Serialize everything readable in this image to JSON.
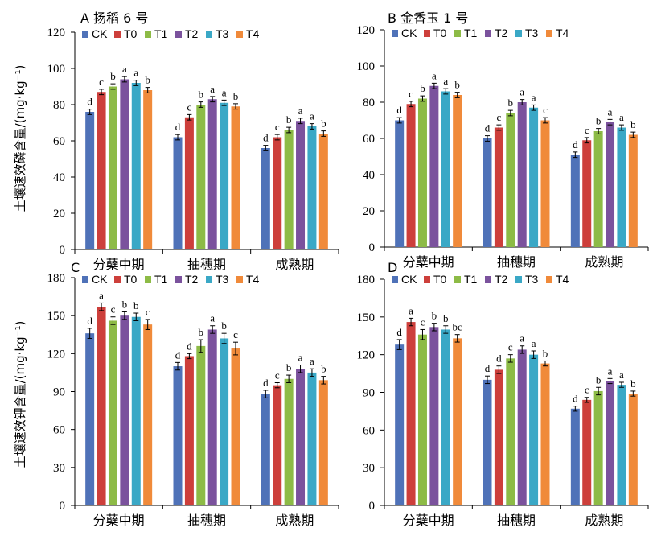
{
  "colors": {
    "CK": "#4f72b8",
    "T0": "#cd3f3b",
    "T1": "#8dbb46",
    "T2": "#7b529d",
    "T3": "#3aa8c6",
    "T4": "#f08a3a"
  },
  "ylabels": {
    "top": "土壤速效磷含量/(mg·kg⁻¹)",
    "bottom": "土壤速效钾含量/(mg·kg⁻¹)"
  },
  "chart_data": [
    {
      "id": "A",
      "type": "bar",
      "title": "A   扬稻 6 号",
      "ylim": [
        0,
        120
      ],
      "yticks": [
        0,
        20,
        40,
        60,
        80,
        100,
        120
      ],
      "categories": [
        "分蘖中期",
        "抽穗期",
        "成熟期"
      ],
      "series": [
        {
          "name": "CK",
          "values": [
            76,
            62,
            56
          ],
          "errors": [
            1.5,
            1.5,
            1.5
          ],
          "sig": [
            "d",
            "d",
            "d"
          ]
        },
        {
          "name": "T0",
          "values": [
            87,
            73,
            62
          ],
          "errors": [
            1.5,
            1.5,
            1.5
          ],
          "sig": [
            "c",
            "c",
            "c"
          ]
        },
        {
          "name": "T1",
          "values": [
            90,
            80,
            66
          ],
          "errors": [
            1.5,
            1.5,
            1.5
          ],
          "sig": [
            "b",
            "b",
            "b"
          ]
        },
        {
          "name": "T2",
          "values": [
            94,
            83,
            71
          ],
          "errors": [
            1.5,
            1.5,
            1.5
          ],
          "sig": [
            "a",
            "a",
            "a"
          ]
        },
        {
          "name": "T3",
          "values": [
            92,
            81,
            68
          ],
          "errors": [
            1.5,
            1.5,
            1.5
          ],
          "sig": [
            "a",
            "a",
            "a"
          ]
        },
        {
          "name": "T4",
          "values": [
            88,
            79,
            64
          ],
          "errors": [
            1.5,
            1.5,
            1.5
          ],
          "sig": [
            "b",
            "b",
            "b"
          ]
        }
      ]
    },
    {
      "id": "B",
      "type": "bar",
      "title": "B   金香玉 1 号",
      "ylim": [
        0,
        120
      ],
      "yticks": [
        0,
        20,
        40,
        60,
        80,
        100,
        120
      ],
      "categories": [
        "分蘖中期",
        "抽穗期",
        "成熟期"
      ],
      "series": [
        {
          "name": "CK",
          "values": [
            70,
            60,
            51
          ],
          "errors": [
            1.5,
            1.5,
            1.5
          ],
          "sig": [
            "d",
            "d",
            "d"
          ]
        },
        {
          "name": "T0",
          "values": [
            79,
            66,
            59
          ],
          "errors": [
            1.5,
            1.5,
            1.5
          ],
          "sig": [
            "c",
            "c",
            "c"
          ]
        },
        {
          "name": "T1",
          "values": [
            82,
            74,
            64
          ],
          "errors": [
            1.5,
            1.5,
            1.5
          ],
          "sig": [
            "b",
            "b",
            "b"
          ]
        },
        {
          "name": "T2",
          "values": [
            89,
            80,
            69
          ],
          "errors": [
            1.5,
            1.5,
            1.5
          ],
          "sig": [
            "a",
            "a",
            "a"
          ]
        },
        {
          "name": "T3",
          "values": [
            86,
            77,
            66
          ],
          "errors": [
            1.5,
            1.5,
            1.5
          ],
          "sig": [
            "a",
            "a",
            "a"
          ]
        },
        {
          "name": "T4",
          "values": [
            84,
            70,
            62
          ],
          "errors": [
            1.5,
            1.5,
            1.5
          ],
          "sig": [
            "b",
            "c",
            "b"
          ]
        }
      ]
    },
    {
      "id": "C",
      "type": "bar",
      "title": "C",
      "ylim": [
        0,
        180
      ],
      "yticks": [
        0,
        30,
        60,
        90,
        120,
        150,
        180
      ],
      "categories": [
        "分蘖中期",
        "抽穗期",
        "成熟期"
      ],
      "series": [
        {
          "name": "CK",
          "values": [
            136,
            110,
            88
          ],
          "errors": [
            4,
            3,
            3
          ],
          "sig": [
            "d",
            "d",
            "d"
          ]
        },
        {
          "name": "T0",
          "values": [
            157,
            118,
            95
          ],
          "errors": [
            3,
            2,
            2
          ],
          "sig": [
            "a",
            "d",
            "c"
          ]
        },
        {
          "name": "T1",
          "values": [
            146,
            126,
            100
          ],
          "errors": [
            3,
            5,
            3
          ],
          "sig": [
            "c",
            "b",
            "b"
          ]
        },
        {
          "name": "T2",
          "values": [
            150,
            139,
            108
          ],
          "errors": [
            3,
            3,
            3
          ],
          "sig": [
            "b",
            "a",
            "a"
          ]
        },
        {
          "name": "T3",
          "values": [
            149,
            132,
            105
          ],
          "errors": [
            3,
            4,
            3
          ],
          "sig": [
            "b",
            "b",
            "a"
          ]
        },
        {
          "name": "T4",
          "values": [
            143,
            124,
            99
          ],
          "errors": [
            4,
            5,
            3
          ],
          "sig": [
            "c",
            "c",
            "b"
          ]
        }
      ]
    },
    {
      "id": "D",
      "type": "bar",
      "title": "D",
      "ylim": [
        0,
        180
      ],
      "yticks": [
        0,
        30,
        60,
        90,
        120,
        150,
        180
      ],
      "categories": [
        "分蘖中期",
        "抽穗期",
        "成熟期"
      ],
      "series": [
        {
          "name": "CK",
          "values": [
            128,
            100,
            77
          ],
          "errors": [
            4,
            3,
            2
          ],
          "sig": [
            "d",
            "d",
            "d"
          ]
        },
        {
          "name": "T0",
          "values": [
            146,
            108,
            84
          ],
          "errors": [
            3,
            3,
            2
          ],
          "sig": [
            "a",
            "d",
            "c"
          ]
        },
        {
          "name": "T1",
          "values": [
            136,
            117,
            91
          ],
          "errors": [
            4,
            3,
            3
          ],
          "sig": [
            "c",
            "c",
            "b"
          ]
        },
        {
          "name": "T2",
          "values": [
            142,
            124,
            99
          ],
          "errors": [
            3,
            3,
            2
          ],
          "sig": [
            "b",
            "a",
            "a"
          ]
        },
        {
          "name": "T3",
          "values": [
            140,
            120,
            96
          ],
          "errors": [
            3,
            3,
            2
          ],
          "sig": [
            "b",
            "a",
            "a"
          ]
        },
        {
          "name": "T4",
          "values": [
            133,
            113,
            89
          ],
          "errors": [
            3,
            2,
            2
          ],
          "sig": [
            "bc",
            "b",
            "b"
          ]
        }
      ]
    }
  ]
}
